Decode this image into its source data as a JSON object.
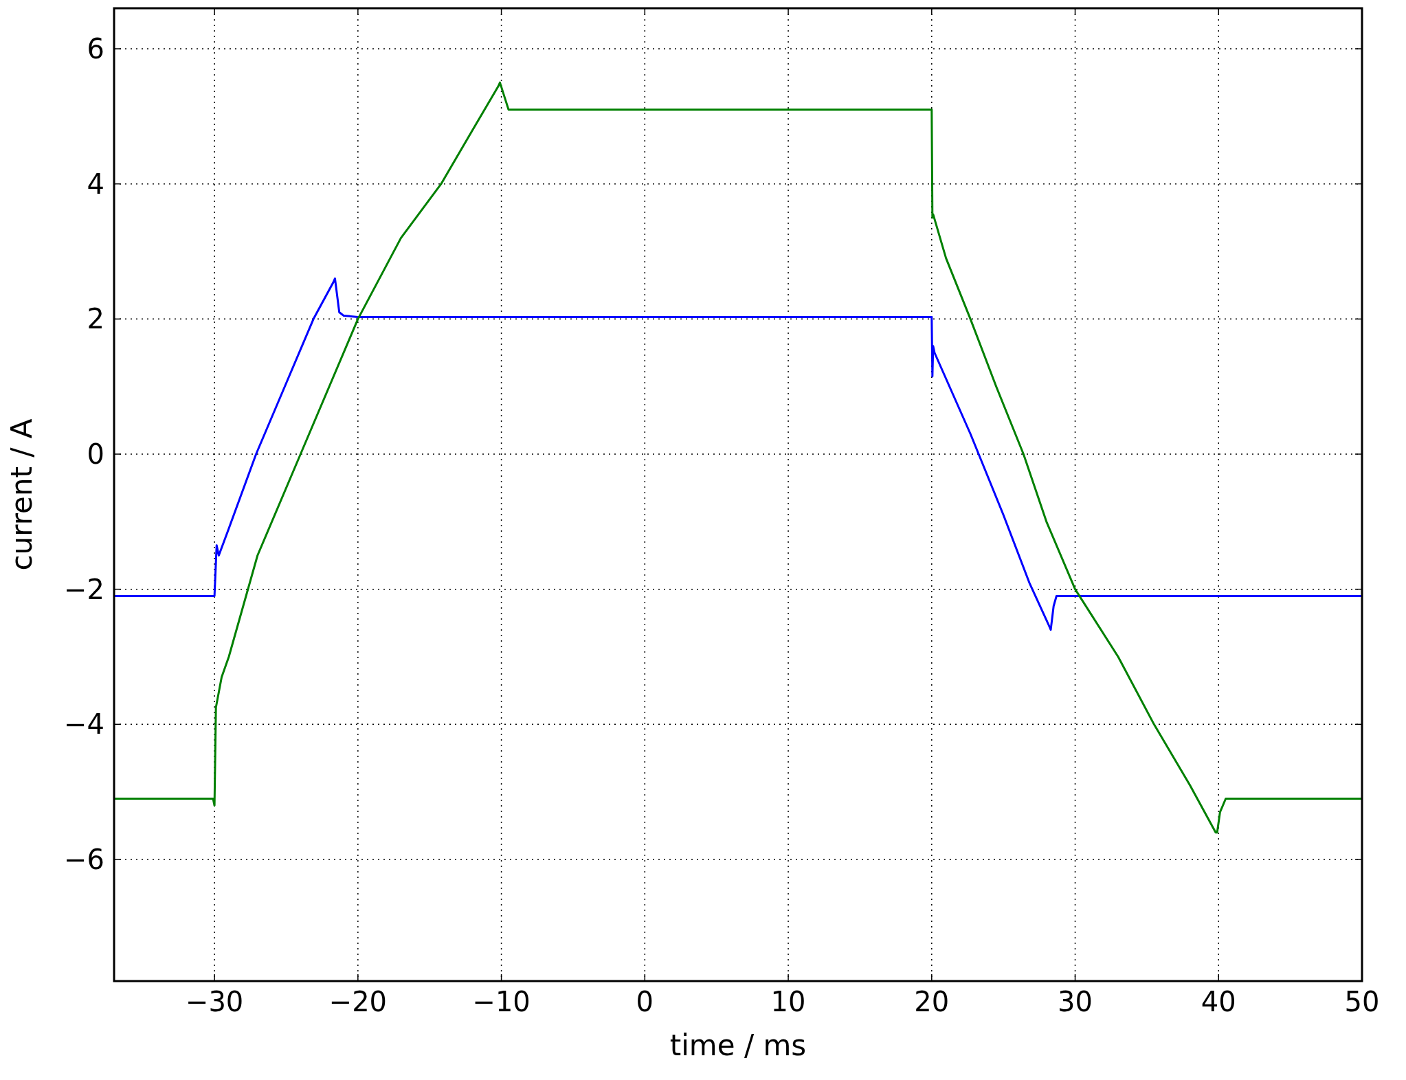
{
  "chart_data": {
    "type": "line",
    "xlabel": "time / ms",
    "ylabel": "current / A",
    "xlim": [
      -37,
      50
    ],
    "ylim": [
      -7.8,
      6.6
    ],
    "xticks": [
      {
        "value": -30,
        "label": "−30"
      },
      {
        "value": -20,
        "label": "−20"
      },
      {
        "value": -10,
        "label": "−10"
      },
      0,
      10,
      20,
      30,
      40,
      50
    ],
    "yticks": [
      {
        "value": -6,
        "label": "−6"
      },
      {
        "value": -4,
        "label": "−4"
      },
      {
        "value": -2,
        "label": "−2"
      },
      0,
      2,
      4,
      6
    ],
    "grid": true,
    "line_style": "solid",
    "marker": "none",
    "series": [
      {
        "color": "#0000ff",
        "x": [
          -37,
          -30,
          -29.9,
          -29.85,
          -29.7,
          -29,
          -27.1,
          -25,
          -23.1,
          -21.7,
          -21.6,
          -21.3,
          -21,
          -20,
          20,
          20.05,
          20.1,
          20.2,
          22.7,
          25,
          26.8,
          28.2,
          28.3,
          28.5,
          28.7,
          50
        ],
        "values": [
          -2.1,
          -2.1,
          -1.6,
          -1.35,
          -1.5,
          -1.1,
          0,
          1.05,
          2,
          2.55,
          2.6,
          2.1,
          2.05,
          2.03,
          2.03,
          1.15,
          1.6,
          1.5,
          0.3,
          -0.9,
          -1.9,
          -2.55,
          -2.6,
          -2.25,
          -2.1,
          -2.1
        ]
      },
      {
        "color": "#008000",
        "x": [
          -37,
          -30.1,
          -30,
          -29.9,
          -29.5,
          -29,
          -27,
          -24,
          -20,
          -17,
          -14.2,
          -12,
          -10.2,
          -10.1,
          -9.8,
          -9.5,
          20,
          20.05,
          20.1,
          21,
          22.7,
          24.5,
          26.4,
          28,
          30,
          33,
          35.5,
          38,
          39.8,
          39.9,
          40.1,
          40.5,
          50
        ],
        "values": [
          -5.1,
          -5.1,
          -5.2,
          -3.75,
          -3.3,
          -3,
          -1.5,
          0,
          2,
          3.2,
          4,
          4.8,
          5.45,
          5.5,
          5.3,
          5.1,
          5.1,
          3.5,
          3.55,
          2.9,
          2,
          1,
          0,
          -1,
          -2,
          -3,
          -4,
          -4.9,
          -5.6,
          -5.6,
          -5.3,
          -5.1,
          -5.1
        ]
      }
    ]
  }
}
